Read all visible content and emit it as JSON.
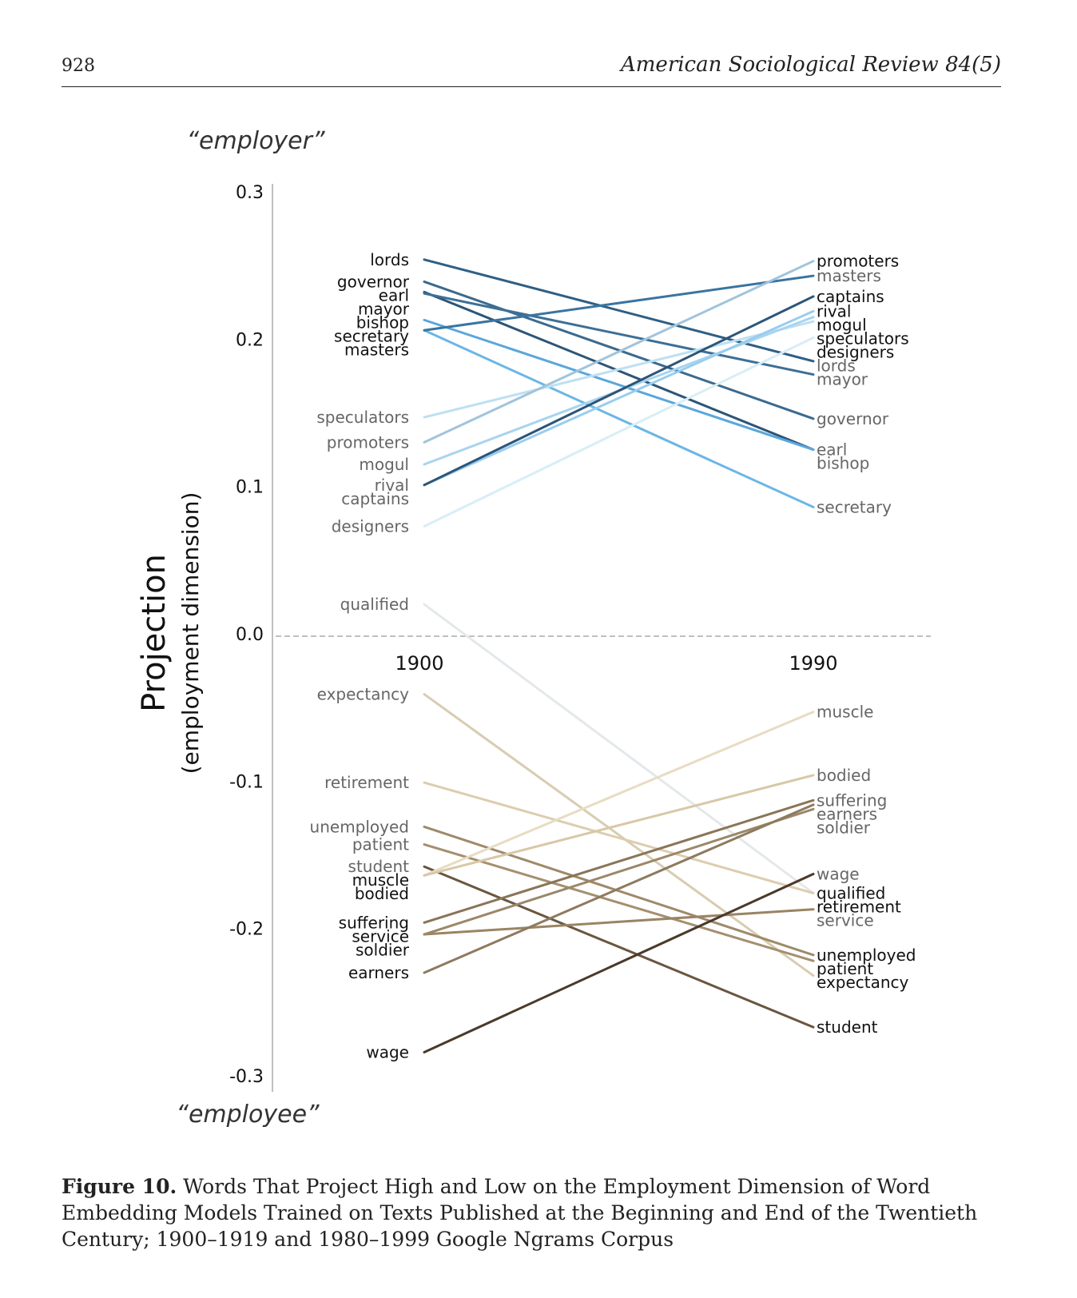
{
  "header": {
    "page_number": "928",
    "journal_title": "American Sociological Review 84(5)"
  },
  "figure": {
    "label": "Figure 10.",
    "caption": "Words That Project High and Low on the Employment Dimension of Word Embedding Models Trained on Texts Published at the Beginning and End of the Twentieth Century; 1900–1919 and 1980–1999 Google Ngrams Corpus"
  },
  "chart_data": {
    "type": "line",
    "chart_style": "slope chart",
    "ylabel": "Projection",
    "ylabel_sub": "(employment dimension)",
    "top_annotation": "“employer”",
    "bottom_annotation": "“employee”",
    "x": [
      "1900",
      "1990"
    ],
    "ylim": [
      -0.3,
      0.3
    ],
    "yticks": [
      "0.3",
      "0.2",
      "0.1",
      "0.0",
      "-0.1",
      "-0.2",
      "-0.3"
    ],
    "ytick_values": [
      0.3,
      0.2,
      0.1,
      0.0,
      -0.1,
      -0.2,
      -0.3
    ],
    "zero_line": "dashed",
    "grid": false,
    "colors": {
      "employer_dark": "#1a3f61",
      "employer_light": "#d8eef6",
      "employee_dark": "#4a3a2a",
      "employee_light": "#f0e8d4"
    },
    "series": [
      {
        "name": "lords",
        "group": "employer",
        "values": [
          0.254,
          0.185
        ],
        "color": "#2f5f84",
        "label_color": "#111111"
      },
      {
        "name": "governor",
        "group": "employer",
        "values": [
          0.239,
          0.146
        ],
        "color": "#3a6a90",
        "label_color": "#111111"
      },
      {
        "name": "earl",
        "group": "employer",
        "values": [
          0.232,
          0.125
        ],
        "color": "#2c5578",
        "label_color": "#111111"
      },
      {
        "name": "mayor",
        "group": "employer",
        "values": [
          0.231,
          0.176
        ],
        "color": "#3d6f96",
        "label_color": "#111111"
      },
      {
        "name": "bishop",
        "group": "employer",
        "values": [
          0.213,
          0.125
        ],
        "color": "#5aa7dc",
        "label_color": "#111111"
      },
      {
        "name": "secretary",
        "group": "employer",
        "values": [
          0.206,
          0.086
        ],
        "color": "#6bb6e6",
        "label_color": "#111111"
      },
      {
        "name": "masters",
        "group": "employer",
        "values": [
          0.206,
          0.243
        ],
        "color": "#3a74a0",
        "label_color": "#111111"
      },
      {
        "name": "speculators",
        "group": "employer",
        "values": [
          0.147,
          0.212
        ],
        "color": "#bde0f2",
        "label_color": "#666666"
      },
      {
        "name": "promoters",
        "group": "employer",
        "values": [
          0.13,
          0.253
        ],
        "color": "#a0c4dc",
        "label_color": "#666666"
      },
      {
        "name": "mogul",
        "group": "employer",
        "values": [
          0.115,
          0.215
        ],
        "color": "#a8d4ef",
        "label_color": "#666666"
      },
      {
        "name": "rival",
        "group": "employer",
        "values": [
          0.101,
          0.219
        ],
        "color": "#99cdee",
        "label_color": "#666666"
      },
      {
        "name": "captains",
        "group": "employer",
        "values": [
          0.101,
          0.229
        ],
        "color": "#2c5578",
        "label_color": "#666666"
      },
      {
        "name": "designers",
        "group": "employer",
        "values": [
          0.073,
          0.201
        ],
        "color": "#d8eef6",
        "label_color": "#666666"
      },
      {
        "name": "qualified",
        "group": "employee",
        "values": [
          0.02,
          -0.176
        ],
        "color": "#e4e8ea",
        "label_color": "#666666"
      },
      {
        "name": "expectancy",
        "group": "employee",
        "values": [
          -0.041,
          -0.232
        ],
        "color": "#d8ccb2",
        "label_color": "#666666"
      },
      {
        "name": "retirement",
        "group": "employee",
        "values": [
          -0.101,
          -0.176
        ],
        "color": "#dccdae",
        "label_color": "#666666"
      },
      {
        "name": "unemployed",
        "group": "employee",
        "values": [
          -0.131,
          -0.218
        ],
        "color": "#9e8a6a",
        "label_color": "#666666"
      },
      {
        "name": "patient",
        "group": "employee",
        "values": [
          -0.143,
          -0.222
        ],
        "color": "#a48f6f",
        "label_color": "#666666"
      },
      {
        "name": "student",
        "group": "employee",
        "values": [
          -0.158,
          -0.267
        ],
        "color": "#6a5640",
        "label_color": "#666666"
      },
      {
        "name": "muscle",
        "group": "employee",
        "values": [
          -0.164,
          -0.053
        ],
        "color": "#e8dcc2",
        "label_color": "#111111"
      },
      {
        "name": "bodied",
        "group": "employee",
        "values": [
          -0.164,
          -0.096
        ],
        "color": "#d9c8a6",
        "label_color": "#111111"
      },
      {
        "name": "suffering",
        "group": "employee",
        "values": [
          -0.196,
          -0.113
        ],
        "color": "#8a7558",
        "label_color": "#111111"
      },
      {
        "name": "service",
        "group": "employee",
        "values": [
          -0.204,
          -0.187
        ],
        "color": "#9a8462",
        "label_color": "#111111"
      },
      {
        "name": "soldier",
        "group": "employee",
        "values": [
          -0.204,
          -0.119
        ],
        "color": "#9b8769",
        "label_color": "#111111"
      },
      {
        "name": "earners",
        "group": "employee",
        "values": [
          -0.23,
          -0.116
        ],
        "color": "#8e7a5e",
        "label_color": "#111111"
      },
      {
        "name": "wage",
        "group": "employee",
        "values": [
          -0.284,
          -0.163
        ],
        "color": "#4a3a2a",
        "label_color": "#111111"
      }
    ]
  }
}
